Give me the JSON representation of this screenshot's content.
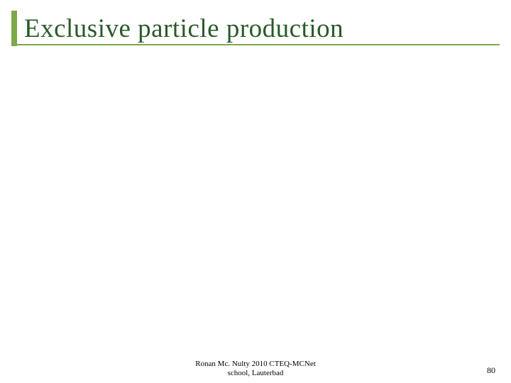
{
  "slide": {
    "title": "Exclusive particle production",
    "title_color": "#2a5a2a",
    "accent_color": "#7ea84a",
    "title_fontsize": 37,
    "background_color": "#ffffff"
  },
  "footer": {
    "line1": "Ronan Mc. Nulty  2010 CTEQ-MCNet",
    "line2": "school, Lauterbad",
    "fontsize": 11,
    "color": "#000000"
  },
  "page": {
    "number": "80",
    "fontsize": 12,
    "color": "#000000"
  }
}
